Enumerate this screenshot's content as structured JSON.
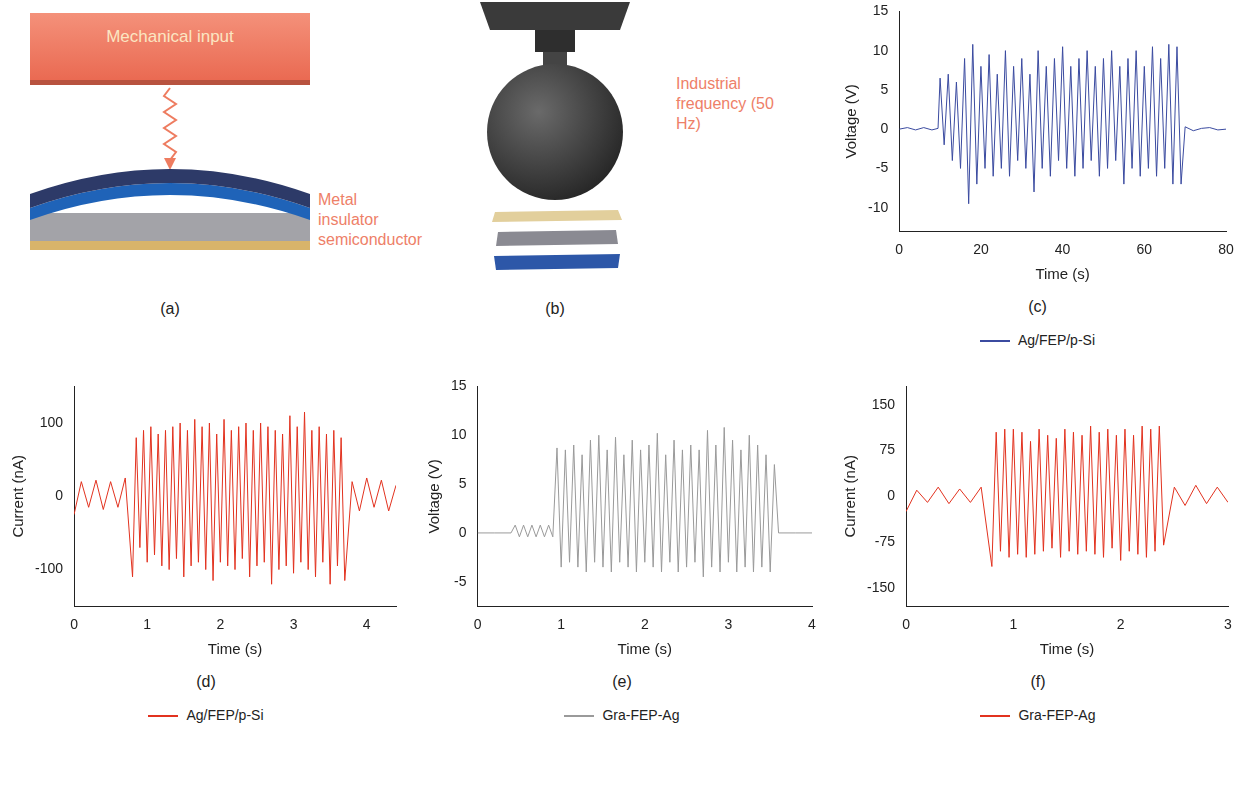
{
  "diagrams": [
    {
      "panel": "(a)",
      "input_label": "Mechanical input",
      "structure_label": "Metal insulator semiconductor"
    },
    {
      "panel": "(b)",
      "frequency_label": "Industrial frequency (50 Hz)"
    }
  ],
  "chart_data": [
    {
      "panel": "(c)",
      "type": "line",
      "x_label": "Time (s)",
      "y_label": "Voltage (V)",
      "xlim": [
        0,
        80
      ],
      "xticks": [
        0,
        20,
        40,
        60,
        80
      ],
      "ylim": [
        -13,
        15
      ],
      "yticks": [
        -10,
        -5,
        0,
        5,
        10,
        15
      ],
      "grid": false,
      "legend": "bottom",
      "x": [
        0,
        2,
        4,
        6,
        8,
        9.5,
        10,
        11,
        12,
        13,
        14,
        15,
        16,
        17,
        18,
        19,
        20,
        21,
        22,
        23,
        24,
        25,
        26,
        27,
        28,
        29,
        30,
        31,
        32,
        33,
        34,
        35,
        36,
        37,
        38,
        39,
        40,
        41,
        42,
        43,
        44,
        45,
        46,
        47,
        48,
        49,
        50,
        51,
        52,
        53,
        54,
        55,
        56,
        57,
        58,
        59,
        60,
        61,
        62,
        63,
        64,
        65,
        66,
        67,
        68,
        69,
        70,
        72,
        74,
        76,
        78,
        80
      ],
      "series": [
        {
          "name": "Ag/FEP/p-Si",
          "color": "#3b4ba0",
          "values": [
            0,
            0.2,
            -0.1,
            0.2,
            -0.1,
            0.1,
            6.5,
            -2,
            7,
            -4,
            6,
            -5,
            9,
            -9.5,
            10.8,
            -7,
            8,
            -5,
            9.5,
            -6,
            7,
            -5,
            10,
            -6,
            8,
            -4,
            9,
            -5,
            7,
            -8,
            10,
            -5,
            8,
            -6,
            9,
            -4,
            10.5,
            -5,
            8,
            -6,
            9,
            -5,
            10,
            -4,
            8,
            -6,
            9,
            -5,
            10,
            -4,
            8,
            -7,
            9,
            -5,
            10,
            -6,
            8,
            -5,
            10.5,
            -6,
            9,
            -5,
            10.8,
            -7,
            10.5,
            -7,
            0.3,
            -0.2,
            0.1,
            0.2,
            -0.1,
            0
          ]
        }
      ]
    },
    {
      "panel": "(d)",
      "type": "line",
      "x_label": "Time (s)",
      "y_label": "Current (nA)",
      "xlim": [
        0,
        4.4
      ],
      "xticks": [
        0,
        1,
        2,
        3,
        4
      ],
      "ylim": [
        -150,
        150
      ],
      "yticks": [
        -100,
        0,
        100
      ],
      "grid": false,
      "legend": "bottom",
      "x": [
        0,
        0.1,
        0.2,
        0.3,
        0.4,
        0.5,
        0.6,
        0.7,
        0.8,
        0.85,
        0.9,
        0.95,
        1.0,
        1.05,
        1.1,
        1.15,
        1.2,
        1.25,
        1.3,
        1.35,
        1.4,
        1.45,
        1.5,
        1.55,
        1.6,
        1.65,
        1.7,
        1.75,
        1.8,
        1.85,
        1.9,
        1.95,
        2.0,
        2.05,
        2.1,
        2.15,
        2.2,
        2.25,
        2.3,
        2.35,
        2.4,
        2.45,
        2.5,
        2.55,
        2.6,
        2.65,
        2.7,
        2.75,
        2.8,
        2.85,
        2.9,
        2.95,
        3.0,
        3.05,
        3.1,
        3.15,
        3.2,
        3.25,
        3.3,
        3.35,
        3.4,
        3.45,
        3.5,
        3.55,
        3.6,
        3.65,
        3.7,
        3.8,
        3.9,
        4.0,
        4.1,
        4.2,
        4.3,
        4.4
      ],
      "series": [
        {
          "name": "Ag/FEP/p-Si",
          "color": "#e2321f",
          "values": [
            -25,
            20,
            -15,
            22,
            -18,
            20,
            -15,
            25,
            -110,
            80,
            -70,
            90,
            -90,
            95,
            -80,
            85,
            -95,
            90,
            -100,
            95,
            -85,
            100,
            -110,
            90,
            -95,
            105,
            -90,
            95,
            -100,
            100,
            -115,
            85,
            -90,
            105,
            -95,
            90,
            -100,
            95,
            -85,
            100,
            -110,
            90,
            -95,
            100,
            -90,
            95,
            -120,
            90,
            -100,
            85,
            -95,
            110,
            -105,
            95,
            -90,
            115,
            -100,
            90,
            -110,
            95,
            -90,
            85,
            -120,
            90,
            -95,
            80,
            -115,
            20,
            -20,
            25,
            -15,
            22,
            -20,
            15
          ]
        }
      ]
    },
    {
      "panel": "(e)",
      "type": "line",
      "x_label": "Time (s)",
      "y_label": "Voltage (V)",
      "xlim": [
        0,
        4
      ],
      "xticks": [
        0,
        1,
        2,
        3,
        4
      ],
      "ylim": [
        -7.5,
        15
      ],
      "yticks": [
        -5,
        0,
        5,
        10,
        15
      ],
      "grid": false,
      "legend": "bottom",
      "x": [
        0,
        0.2,
        0.4,
        0.45,
        0.5,
        0.55,
        0.6,
        0.65,
        0.7,
        0.75,
        0.8,
        0.85,
        0.9,
        0.95,
        1.0,
        1.05,
        1.1,
        1.15,
        1.2,
        1.25,
        1.3,
        1.35,
        1.4,
        1.45,
        1.5,
        1.55,
        1.6,
        1.65,
        1.7,
        1.75,
        1.8,
        1.85,
        1.9,
        1.95,
        2.0,
        2.05,
        2.1,
        2.15,
        2.2,
        2.25,
        2.3,
        2.35,
        2.4,
        2.45,
        2.5,
        2.55,
        2.6,
        2.65,
        2.7,
        2.75,
        2.8,
        2.85,
        2.9,
        2.95,
        3.0,
        3.05,
        3.1,
        3.15,
        3.2,
        3.25,
        3.3,
        3.35,
        3.4,
        3.45,
        3.5,
        3.55,
        3.6,
        3.8,
        4.0
      ],
      "series": [
        {
          "name": "Gra-FEP-Ag",
          "color": "#9a9a9a",
          "values": [
            0,
            0,
            0,
            0.8,
            -0.4,
            0.8,
            -0.4,
            0.8,
            -0.4,
            0.8,
            -0.4,
            0.8,
            -0.4,
            8.7,
            -3.5,
            8.5,
            -3,
            9,
            -3.5,
            8,
            -4,
            9.5,
            -3,
            10,
            -3.5,
            8.5,
            -4,
            9.8,
            -3,
            8,
            -3.5,
            9.5,
            -4,
            8.5,
            -3,
            9,
            -3.5,
            10.2,
            -4,
            8,
            -3,
            9.5,
            -4,
            8.5,
            -3.5,
            9,
            -3,
            8.5,
            -4.5,
            10.5,
            -3.5,
            9,
            -4,
            10.8,
            -3,
            9.5,
            -4,
            8.5,
            -3.5,
            10,
            -4,
            9,
            -3.5,
            8,
            -4,
            7,
            0,
            0,
            0
          ]
        }
      ]
    },
    {
      "panel": "(f)",
      "type": "line",
      "x_label": "Time (s)",
      "y_label": "Current (nA)",
      "xlim": [
        0,
        3
      ],
      "xticks": [
        0,
        1,
        2,
        3
      ],
      "ylim": [
        -180,
        180
      ],
      "yticks": [
        -150,
        -75,
        0,
        75,
        150
      ],
      "grid": false,
      "legend": "bottom",
      "x": [
        0,
        0.1,
        0.2,
        0.3,
        0.4,
        0.5,
        0.6,
        0.7,
        0.8,
        0.84,
        0.88,
        0.92,
        0.96,
        1.0,
        1.04,
        1.08,
        1.12,
        1.16,
        1.2,
        1.24,
        1.28,
        1.32,
        1.36,
        1.4,
        1.44,
        1.48,
        1.52,
        1.56,
        1.6,
        1.64,
        1.68,
        1.72,
        1.76,
        1.8,
        1.84,
        1.88,
        1.92,
        1.96,
        2.0,
        2.04,
        2.08,
        2.12,
        2.16,
        2.2,
        2.24,
        2.28,
        2.32,
        2.36,
        2.4,
        2.5,
        2.6,
        2.7,
        2.8,
        2.9,
        3.0
      ],
      "series": [
        {
          "name": "Gra-FEP-Ag",
          "color": "#e2321f",
          "values": [
            -25,
            10,
            -10,
            15,
            -12,
            12,
            -10,
            15,
            -115,
            105,
            -90,
            110,
            -100,
            110,
            -95,
            105,
            -100,
            90,
            -95,
            110,
            -90,
            100,
            -85,
            95,
            -100,
            110,
            -90,
            105,
            -95,
            100,
            -90,
            115,
            -95,
            105,
            -100,
            110,
            -85,
            100,
            -105,
            110,
            -90,
            100,
            -95,
            115,
            -100,
            110,
            -90,
            115,
            -80,
            15,
            -15,
            18,
            -12,
            15,
            -10
          ]
        }
      ]
    }
  ]
}
